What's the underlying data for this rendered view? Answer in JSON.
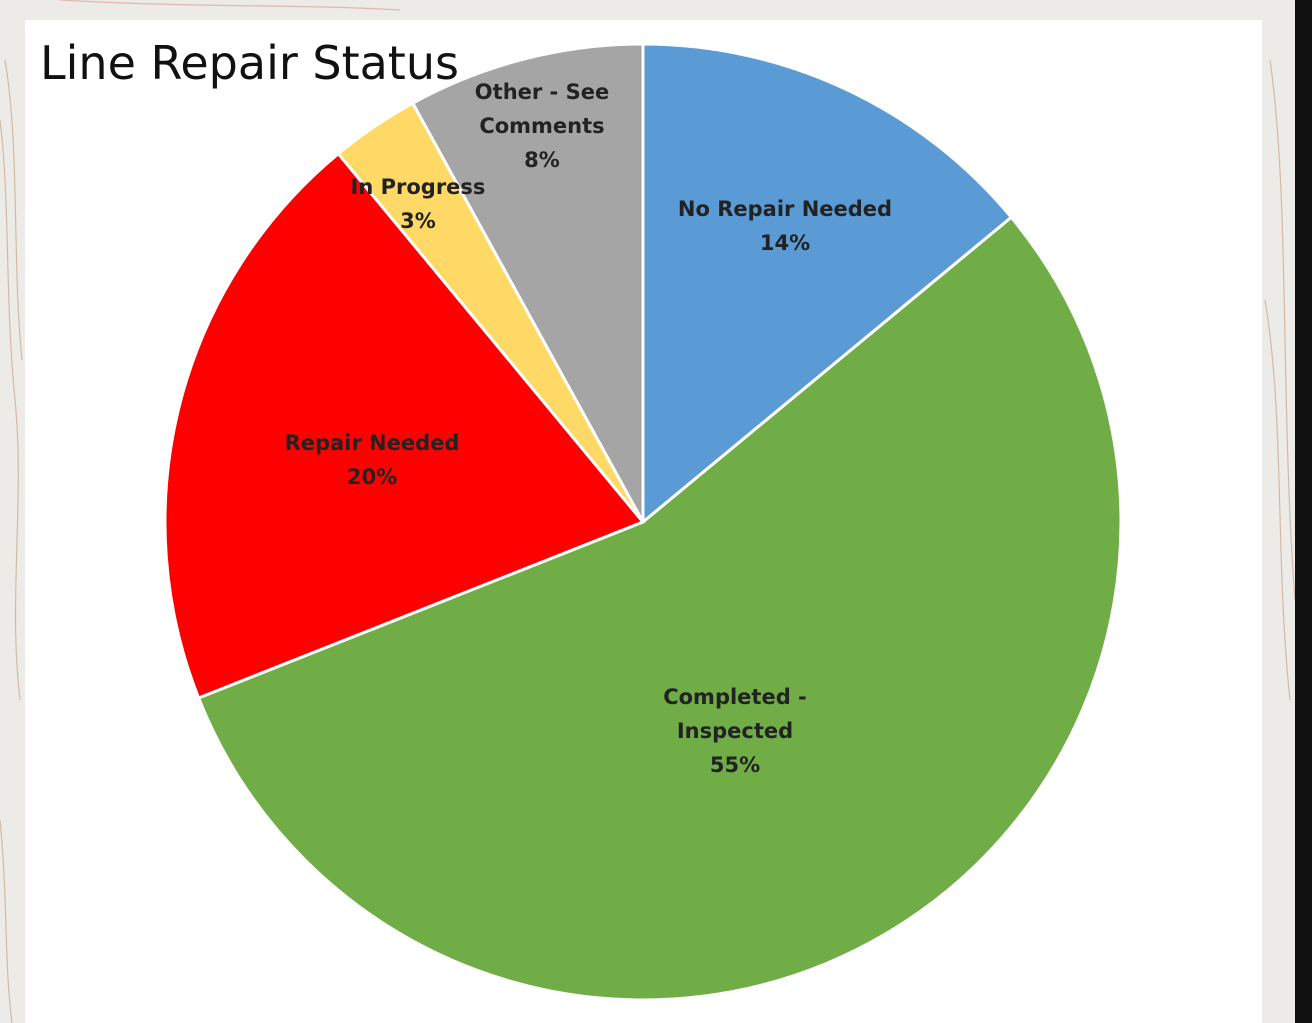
{
  "chart_data": {
    "type": "pie",
    "title": "Line Repair Status",
    "categories": [
      "No Repair Needed",
      "Completed - Inspected",
      "Repair Needed",
      "In Progress",
      "Other - See Comments"
    ],
    "values": [
      14,
      55,
      20,
      3,
      8
    ],
    "value_labels": [
      "14%",
      "55%",
      "20%",
      "3%",
      "8%"
    ],
    "colors": [
      "#5b9bd5",
      "#70ad47",
      "#ff0000",
      "#ffd966",
      "#a5a5a5"
    ]
  }
}
